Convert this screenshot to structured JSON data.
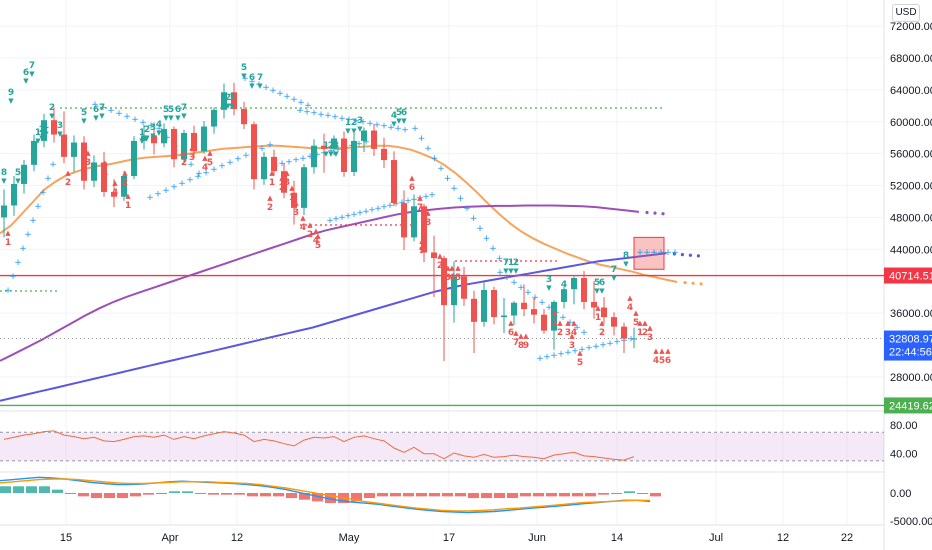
{
  "currency_button": "USD",
  "colors": {
    "up": "#26a69a",
    "down": "#ef5350",
    "ma_orange": "#f7a35c",
    "ma_purple": "#9c4fb8",
    "ma_blue": "#5b57e0",
    "sar_blue": "#2196f3",
    "level_red": "#f23645",
    "level_green": "#4caf50",
    "rsi_line": "#ef6c3e",
    "rsi_band": "#9c27b0",
    "macd_line": "#2196f3",
    "signal_line": "#ff9800",
    "hist_up": "#26a69a",
    "hist_down": "#ef5350"
  },
  "price_ticks": [
    "72000.00",
    "68000.00",
    "64000.00",
    "60000.00",
    "56000.00",
    "52000.00",
    "48000.00",
    "44000.00",
    "36000.00",
    "28000.00"
  ],
  "price_labels": {
    "resistance": "40714.51",
    "current": "32808.97",
    "countdown": "22:44:56",
    "support": "24419.62"
  },
  "rsi_ticks": [
    "80.00",
    "40.00"
  ],
  "macd_ticks": [
    "0.00",
    "-5000.00"
  ],
  "x_ticks": [
    "15",
    "Apr",
    "12",
    "May",
    "17",
    "Jun",
    "14",
    "Jul",
    "12",
    "22"
  ],
  "chart_data": {
    "type": "candlestick",
    "price_axis": {
      "ylim": [
        24000,
        74000
      ],
      "unit": "USD"
    },
    "horizontal_levels": [
      {
        "value": 40714.51,
        "color": "red"
      },
      {
        "value": 24419.62,
        "color": "green"
      },
      {
        "value": 32808.97,
        "style": "dotted",
        "color": "gray"
      }
    ],
    "candles": [
      {
        "o": 48000,
        "h": 51500,
        "l": 45500,
        "c": 49500
      },
      {
        "o": 49500,
        "h": 53200,
        "l": 48200,
        "c": 52200
      },
      {
        "o": 52200,
        "h": 55200,
        "l": 51000,
        "c": 54600
      },
      {
        "o": 54600,
        "h": 58400,
        "l": 53800,
        "c": 57600
      },
      {
        "o": 57600,
        "h": 61000,
        "l": 56800,
        "c": 60200
      },
      {
        "o": 60200,
        "h": 61800,
        "l": 57400,
        "c": 58400
      },
      {
        "o": 58400,
        "h": 61300,
        "l": 54800,
        "c": 55600
      },
      {
        "o": 55600,
        "h": 58300,
        "l": 53700,
        "c": 57400
      },
      {
        "o": 57400,
        "h": 58200,
        "l": 51500,
        "c": 52600
      },
      {
        "o": 52600,
        "h": 55800,
        "l": 51800,
        "c": 54900
      },
      {
        "o": 54900,
        "h": 56200,
        "l": 50600,
        "c": 51200
      },
      {
        "o": 51200,
        "h": 52800,
        "l": 49300,
        "c": 50600
      },
      {
        "o": 50600,
        "h": 53800,
        "l": 50100,
        "c": 53200
      },
      {
        "o": 53200,
        "h": 58200,
        "l": 52800,
        "c": 57600
      },
      {
        "o": 57600,
        "h": 59600,
        "l": 56500,
        "c": 58300
      },
      {
        "o": 58300,
        "h": 59900,
        "l": 55900,
        "c": 57300
      },
      {
        "o": 57300,
        "h": 59800,
        "l": 56800,
        "c": 59100
      },
      {
        "o": 59100,
        "h": 59400,
        "l": 54300,
        "c": 55300
      },
      {
        "o": 55300,
        "h": 59000,
        "l": 54900,
        "c": 58600
      },
      {
        "o": 58600,
        "h": 59500,
        "l": 55500,
        "c": 56300
      },
      {
        "o": 56300,
        "h": 60100,
        "l": 56000,
        "c": 59400
      },
      {
        "o": 59400,
        "h": 61800,
        "l": 58500,
        "c": 61500
      },
      {
        "o": 61500,
        "h": 64800,
        "l": 60400,
        "c": 63700
      },
      {
        "o": 63700,
        "h": 64900,
        "l": 60800,
        "c": 61600
      },
      {
        "o": 61600,
        "h": 62500,
        "l": 59100,
        "c": 59700
      },
      {
        "o": 59700,
        "h": 60000,
        "l": 51500,
        "c": 52800
      },
      {
        "o": 52800,
        "h": 56200,
        "l": 52100,
        "c": 55600
      },
      {
        "o": 55600,
        "h": 56500,
        "l": 53300,
        "c": 53800
      },
      {
        "o": 53800,
        "h": 54800,
        "l": 50400,
        "c": 51100
      },
      {
        "o": 51100,
        "h": 52600,
        "l": 47100,
        "c": 49200
      },
      {
        "o": 49200,
        "h": 54700,
        "l": 48300,
        "c": 54300
      },
      {
        "o": 54300,
        "h": 57800,
        "l": 53500,
        "c": 57000
      },
      {
        "o": 57000,
        "h": 58500,
        "l": 53600,
        "c": 56600
      },
      {
        "o": 56600,
        "h": 58300,
        "l": 55800,
        "c": 57900
      },
      {
        "o": 57900,
        "h": 58800,
        "l": 53100,
        "c": 53700
      },
      {
        "o": 53700,
        "h": 58600,
        "l": 53200,
        "c": 57600
      },
      {
        "o": 57600,
        "h": 59300,
        "l": 56200,
        "c": 58900
      },
      {
        "o": 58900,
        "h": 59700,
        "l": 55700,
        "c": 56600
      },
      {
        "o": 56600,
        "h": 58000,
        "l": 54200,
        "c": 55200
      },
      {
        "o": 55200,
        "h": 56300,
        "l": 49400,
        "c": 49800
      },
      {
        "o": 49800,
        "h": 51400,
        "l": 43900,
        "c": 45500
      },
      {
        "o": 45500,
        "h": 50900,
        "l": 45000,
        "c": 49400
      },
      {
        "o": 49400,
        "h": 49700,
        "l": 42400,
        "c": 43600
      },
      {
        "o": 43600,
        "h": 45700,
        "l": 38000,
        "c": 42900
      },
      {
        "o": 42900,
        "h": 43200,
        "l": 30000,
        "c": 37000
      },
      {
        "o": 37000,
        "h": 42500,
        "l": 34800,
        "c": 40600
      },
      {
        "o": 40600,
        "h": 41800,
        "l": 36900,
        "c": 37800
      },
      {
        "o": 37800,
        "h": 38800,
        "l": 31000,
        "c": 34900
      },
      {
        "o": 34900,
        "h": 39900,
        "l": 34300,
        "c": 38900
      },
      {
        "o": 38900,
        "h": 39300,
        "l": 34600,
        "c": 35500
      },
      {
        "o": 35500,
        "h": 37900,
        "l": 33500,
        "c": 35700
      },
      {
        "o": 35700,
        "h": 37500,
        "l": 34500,
        "c": 37300
      },
      {
        "o": 37300,
        "h": 39600,
        "l": 35600,
        "c": 36500
      },
      {
        "o": 36500,
        "h": 37900,
        "l": 34700,
        "c": 35800
      },
      {
        "o": 35800,
        "h": 36500,
        "l": 33400,
        "c": 33800
      },
      {
        "o": 33800,
        "h": 37600,
        "l": 31400,
        "c": 37400
      },
      {
        "o": 37400,
        "h": 39300,
        "l": 36600,
        "c": 39000
      },
      {
        "o": 39000,
        "h": 40600,
        "l": 37100,
        "c": 40400
      },
      {
        "o": 40400,
        "h": 41300,
        "l": 36500,
        "c": 37400
      },
      {
        "o": 37400,
        "h": 40000,
        "l": 35300,
        "c": 36700
      },
      {
        "o": 36700,
        "h": 38000,
        "l": 34700,
        "c": 35500
      },
      {
        "o": 35500,
        "h": 36100,
        "l": 33200,
        "c": 34300
      },
      {
        "o": 34300,
        "h": 34800,
        "l": 31000,
        "c": 32800
      },
      {
        "o": 32800,
        "h": 34200,
        "l": 31600,
        "c": 32808.97
      }
    ],
    "series": [
      {
        "name": "MA orange",
        "values": [
          46000,
          47000,
          48500,
          50000,
          51500,
          52500,
          53300,
          53800,
          54200,
          54500,
          54700,
          55000,
          55300,
          55500,
          55600,
          55700,
          55800,
          56000,
          56200,
          56400,
          56600,
          56700,
          56800,
          56900,
          57000,
          57000,
          56900,
          56800,
          56700,
          56700,
          56700,
          56700,
          56800,
          56900,
          57000,
          57000,
          56800,
          56500,
          56000,
          55400,
          54600,
          53600,
          52400,
          51100,
          49700,
          48400,
          47200,
          46200,
          45400,
          44700,
          44100,
          43500,
          43000,
          42500,
          42100,
          41800,
          41500,
          41200,
          40800,
          40500,
          40200,
          39900
        ]
      },
      {
        "name": "MA purple",
        "values": [
          30000,
          30900,
          31800,
          32700,
          33700,
          34700,
          35700,
          36600,
          37400,
          38100,
          38700,
          39300,
          39900,
          40500,
          41100,
          41700,
          42300,
          42900,
          43500,
          44100,
          44700,
          45300,
          45900,
          46400,
          46800,
          47200,
          47600,
          48000,
          48400,
          48700,
          48900,
          49100,
          49250,
          49350,
          49400,
          49450,
          49450,
          49500,
          49500,
          49500,
          49450,
          49400,
          49300,
          49100,
          48900,
          48700
        ]
      },
      {
        "name": "MA blue",
        "values": [
          25000,
          25400,
          25800,
          26200,
          26600,
          27000,
          27400,
          27800,
          28200,
          28600,
          29000,
          29400,
          29800,
          30200,
          30600,
          31000,
          31400,
          31800,
          32200,
          32600,
          33000,
          33400,
          33800,
          34200,
          34700,
          35200,
          35700,
          36200,
          36700,
          37200,
          37700,
          38200,
          38700,
          39100,
          39500,
          39800,
          40100,
          40400,
          40700,
          41000,
          41300,
          41600,
          41900,
          42200,
          42500,
          42700,
          42900,
          43100,
          43300,
          43500
        ]
      }
    ],
    "rsi": {
      "ylim": [
        20,
        90
      ],
      "band": [
        30,
        70
      ],
      "values": [
        60,
        63,
        66,
        68,
        71,
        72,
        66,
        64,
        61,
        63,
        58,
        57,
        60,
        64,
        65,
        63,
        66,
        60,
        64,
        61,
        65,
        68,
        71,
        69,
        66,
        57,
        60,
        58,
        54,
        51,
        59,
        63,
        62,
        64,
        57,
        63,
        65,
        61,
        58,
        48,
        42,
        49,
        40,
        40,
        33,
        41,
        37,
        35,
        39,
        35,
        36,
        38,
        36,
        35,
        33,
        38,
        40,
        42,
        37,
        36,
        34,
        32,
        31,
        36
      ]
    },
    "macd": {
      "ylim": [
        -6500,
        3500
      ],
      "macd": [
        2200,
        2400,
        2600,
        2800,
        2700,
        2500,
        2200,
        1900,
        1700,
        1500,
        1500,
        1600,
        1800,
        2000,
        2100,
        2000,
        1900,
        1800,
        1700,
        1500,
        1300,
        1000,
        600,
        100,
        -400,
        -900,
        -1300,
        -1600,
        -1800,
        -2000,
        -2300,
        -2600,
        -2900,
        -3100,
        -3300,
        -3400,
        -3500,
        -3400,
        -3300,
        -3100,
        -2900,
        -2700,
        -2500,
        -2300,
        -2100,
        -1900,
        -1700,
        -1500,
        -1300,
        -1300,
        -1500
      ],
      "signal": [
        1800,
        2000,
        2200,
        2400,
        2500,
        2500,
        2400,
        2200,
        2000,
        1800,
        1700,
        1700,
        1800,
        1900,
        2000,
        2000,
        2000,
        1900,
        1800,
        1700,
        1500,
        1200,
        900,
        500,
        100,
        -300,
        -700,
        -1100,
        -1500,
        -1800,
        -2100,
        -2400,
        -2700,
        -2900,
        -3100,
        -3200,
        -3200,
        -3100,
        -3000,
        -2800,
        -2700,
        -2500,
        -2300,
        -2100,
        -1900,
        -1700,
        -1600,
        -1500,
        -1400,
        -1300,
        -1300
      ]
    },
    "td_sequential": {
      "green_counts": [
        "8",
        "9",
        "5",
        "6",
        "7",
        "1",
        "2",
        "1",
        "2",
        "3",
        "5",
        "6",
        "7",
        "1",
        "2",
        "3",
        "4",
        "5",
        "5",
        "6",
        "7",
        "2",
        "3",
        "5",
        "6",
        "7",
        "1",
        "2",
        "3",
        "1",
        "2",
        "3",
        "4",
        "5",
        "6",
        "7",
        "1",
        "2",
        "3",
        "4",
        "5",
        "6",
        "7",
        "8"
      ],
      "red_counts": [
        "1",
        "2",
        "3",
        "1",
        "2",
        "4",
        "1",
        "2",
        "3",
        "4",
        "5",
        "1",
        "2",
        "3",
        "1",
        "2",
        "3",
        "4",
        "2",
        "4",
        "5",
        "6",
        "7",
        "8",
        "9",
        "2",
        "3",
        "4",
        "5",
        "6",
        "7",
        "8",
        "9",
        "1",
        "2",
        "3",
        "4",
        "5",
        "1",
        "2",
        "3",
        "4",
        "5",
        "1",
        "2",
        "3",
        "4",
        "5",
        "6"
      ]
    },
    "highlight_box": {
      "from_value": 41500,
      "to_value": 45500
    }
  }
}
